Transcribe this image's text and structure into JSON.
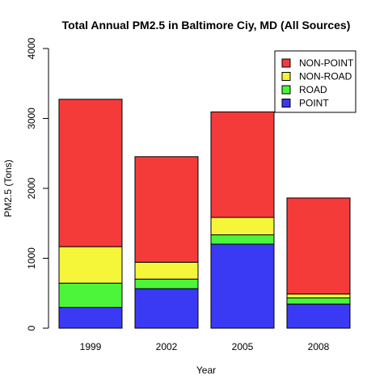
{
  "chart_data": {
    "type": "bar",
    "stacked": true,
    "title": "Total Annual PM2.5 in Baltimore Ciy, MD (All Sources)",
    "xlabel": "Year",
    "ylabel": "PM2.5 (Tons)",
    "categories": [
      "1999",
      "2002",
      "2005",
      "2008"
    ],
    "ylim": [
      0,
      4000
    ],
    "yticks": [
      0,
      1000,
      2000,
      3000,
      4000
    ],
    "grid": false,
    "legend_position": "top-right",
    "series": [
      {
        "name": "POINT",
        "color": "#3a3af5",
        "values": [
          297,
          565,
          1202,
          345
        ]
      },
      {
        "name": "ROAD",
        "color": "#4cf53a",
        "values": [
          347,
          137,
          133,
          88
        ]
      },
      {
        "name": "NON-ROAD",
        "color": "#f5f53a",
        "values": [
          522,
          241,
          249,
          56
        ]
      },
      {
        "name": "NON-POINT",
        "color": "#f53a3a",
        "values": [
          2108,
          1510,
          1509,
          1373
        ]
      }
    ],
    "legend_order": [
      "NON-POINT",
      "NON-ROAD",
      "ROAD",
      "POINT"
    ]
  }
}
